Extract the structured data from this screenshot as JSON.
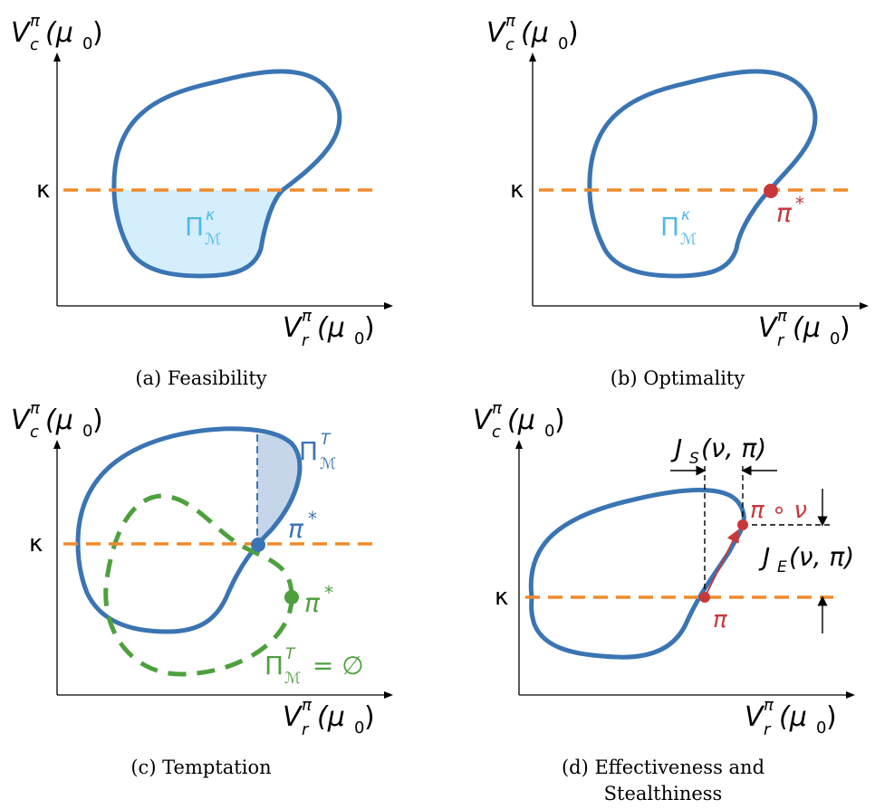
{
  "axis_labels": {
    "y_main": "V",
    "y_sup": "π",
    "y_sub": "c",
    "x_main": "V",
    "x_sup": "π",
    "x_sub": "r",
    "arg": "(μ",
    "arg_sub": "0",
    "arg_close": ")"
  },
  "kappa": "κ",
  "panels": [
    {
      "caption": "(a) Feasibility",
      "region_label": "Π",
      "region_sup": "κ",
      "region_sub": "ℳ"
    },
    {
      "caption": "(b) Optimality",
      "region_label": "Π",
      "region_sup": "κ",
      "region_sub": "ℳ",
      "point_label": "π",
      "point_sup": "*"
    },
    {
      "caption": "(c) Temptation",
      "region_label": "Π",
      "region_sup": "T",
      "region_sub": "ℳ",
      "point_label": "π",
      "point_sup": "*",
      "green_point_label": "π",
      "green_point_sup": "*",
      "green_region_label": "Π",
      "green_region_sup": "T",
      "green_region_sub": "ℳ",
      "green_region_suffix": " = ∅"
    },
    {
      "caption_line1": "(d) Effectiveness and",
      "caption_line2": "Stealthiness",
      "js_label": "J",
      "js_sub": "S",
      "js_args": "(ν, π)",
      "je_label": "J",
      "je_sub": "E",
      "je_args": "(ν, π)",
      "pi_label": "π",
      "pinu_label": "π ∘ ν"
    }
  ],
  "colors": {
    "blue": "#3a74b3",
    "orange": "#ef8a2a",
    "red": "#c8383a",
    "green": "#4ea03e",
    "light_blue_fill": "#d5eefb",
    "light_blue_text": "#4fb8e8",
    "shade_fill": "#c5d6ea"
  }
}
